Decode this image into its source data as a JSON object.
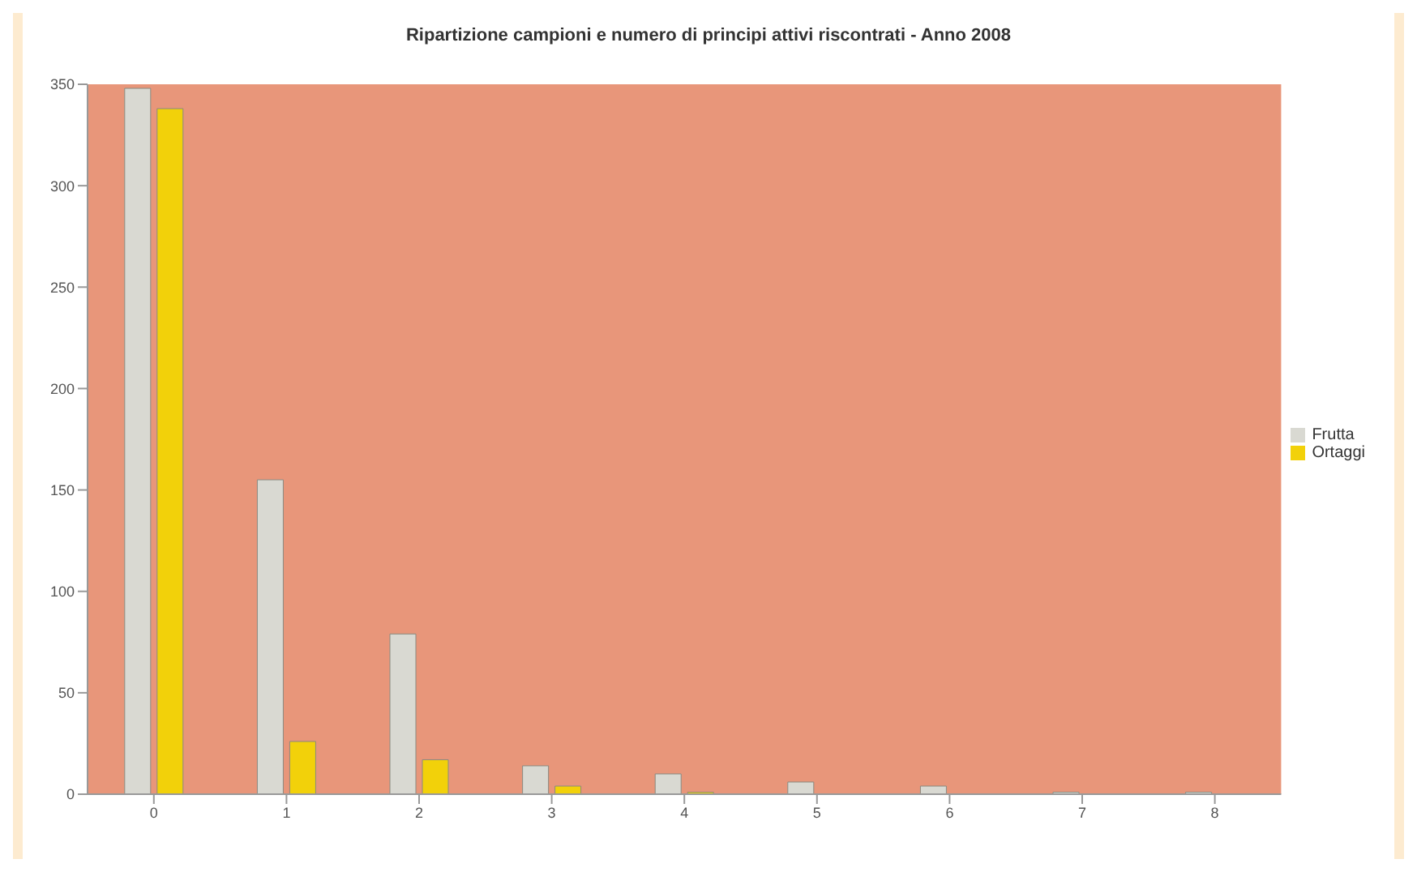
{
  "chart_data": {
    "type": "bar",
    "title": "Ripartizione campioni e numero di principi attivi riscontrati - Anno 2008",
    "categories": [
      "0",
      "1",
      "2",
      "3",
      "4",
      "5",
      "6",
      "7",
      "8"
    ],
    "series": [
      {
        "name": "Frutta",
        "color": "#d9d9d2",
        "values": [
          348,
          155,
          79,
          14,
          10,
          6,
          4,
          1,
          1
        ]
      },
      {
        "name": "Ortaggi",
        "color": "#f2d10a",
        "values": [
          338,
          26,
          17,
          4,
          1,
          0,
          0,
          0,
          0
        ]
      }
    ],
    "ylim": [
      0,
      350
    ],
    "yticks": [
      0,
      50,
      100,
      150,
      200,
      250,
      300,
      350
    ],
    "grid": false,
    "legend": "right"
  }
}
